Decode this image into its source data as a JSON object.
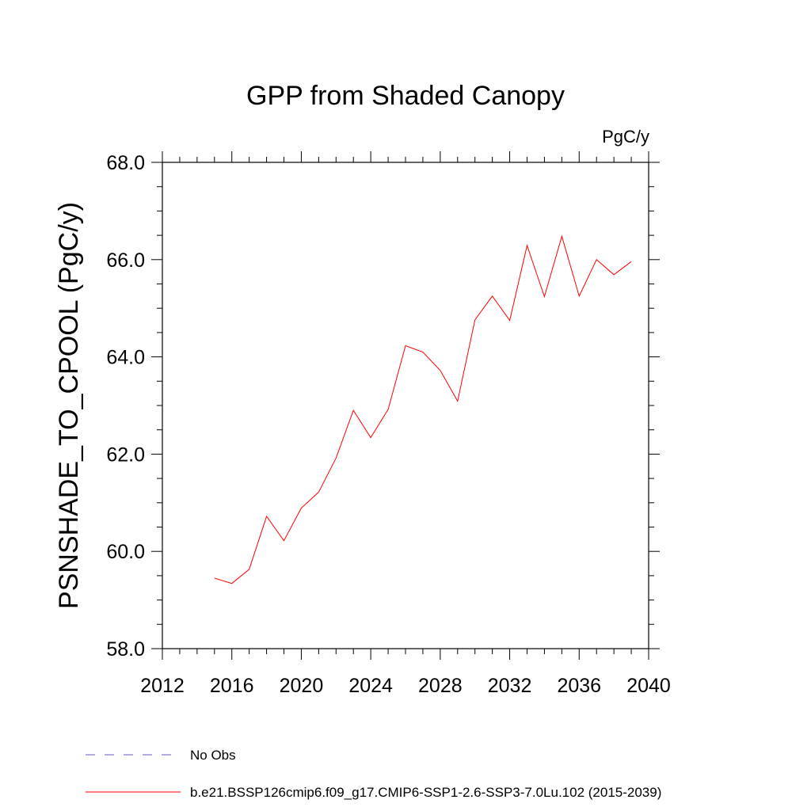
{
  "chart_data": {
    "type": "line",
    "title": "GPP from Shaded Canopy",
    "units_label": "PgC/y",
    "ylabel": "PSNSHADE_TO_CPOOL  (PgC/y)",
    "xlabel": "",
    "xlim": [
      2012,
      2040
    ],
    "ylim": [
      58,
      68
    ],
    "x_ticks": [
      2012,
      2016,
      2020,
      2024,
      2028,
      2032,
      2036,
      2040
    ],
    "y_ticks": [
      58,
      60,
      62,
      64,
      66,
      68
    ],
    "x_tick_labels": [
      "2012",
      "2016",
      "2020",
      "2024",
      "2028",
      "2032",
      "2036",
      "2040"
    ],
    "y_tick_labels": [
      "58.0",
      "60.0",
      "62.0",
      "64.0",
      "66.0",
      "68.0"
    ],
    "grid": false,
    "legend_position": "bottom-left",
    "series": [
      {
        "name": "b.e21.BSSP126cmip6.f09_g17.CMIP6-SSP1-2.6-SSP3-7.0Lu.102 (2015-2039)",
        "color": "#ff0000",
        "style": "solid",
        "x": [
          2015,
          2016,
          2017,
          2018,
          2019,
          2020,
          2021,
          2022,
          2023,
          2024,
          2025,
          2026,
          2027,
          2028,
          2029,
          2030,
          2031,
          2032,
          2033,
          2034,
          2035,
          2036,
          2037,
          2038,
          2039
        ],
        "values": [
          59.45,
          59.34,
          59.63,
          60.72,
          60.22,
          60.89,
          61.22,
          61.92,
          62.9,
          62.34,
          62.92,
          64.23,
          64.1,
          63.72,
          63.09,
          64.76,
          65.25,
          64.75,
          66.29,
          65.24,
          66.48,
          65.25,
          66.0,
          65.69,
          65.96
        ]
      }
    ],
    "legend_entries": [
      {
        "label": "No Obs",
        "color": "#6a5acd",
        "style": "dashed"
      },
      {
        "label": "b.e21.BSSP126cmip6.f09_g17.CMIP6-SSP1-2.6-SSP3-7.0Lu.102 (2015-2039)",
        "color": "#ff0000",
        "style": "solid"
      }
    ]
  }
}
